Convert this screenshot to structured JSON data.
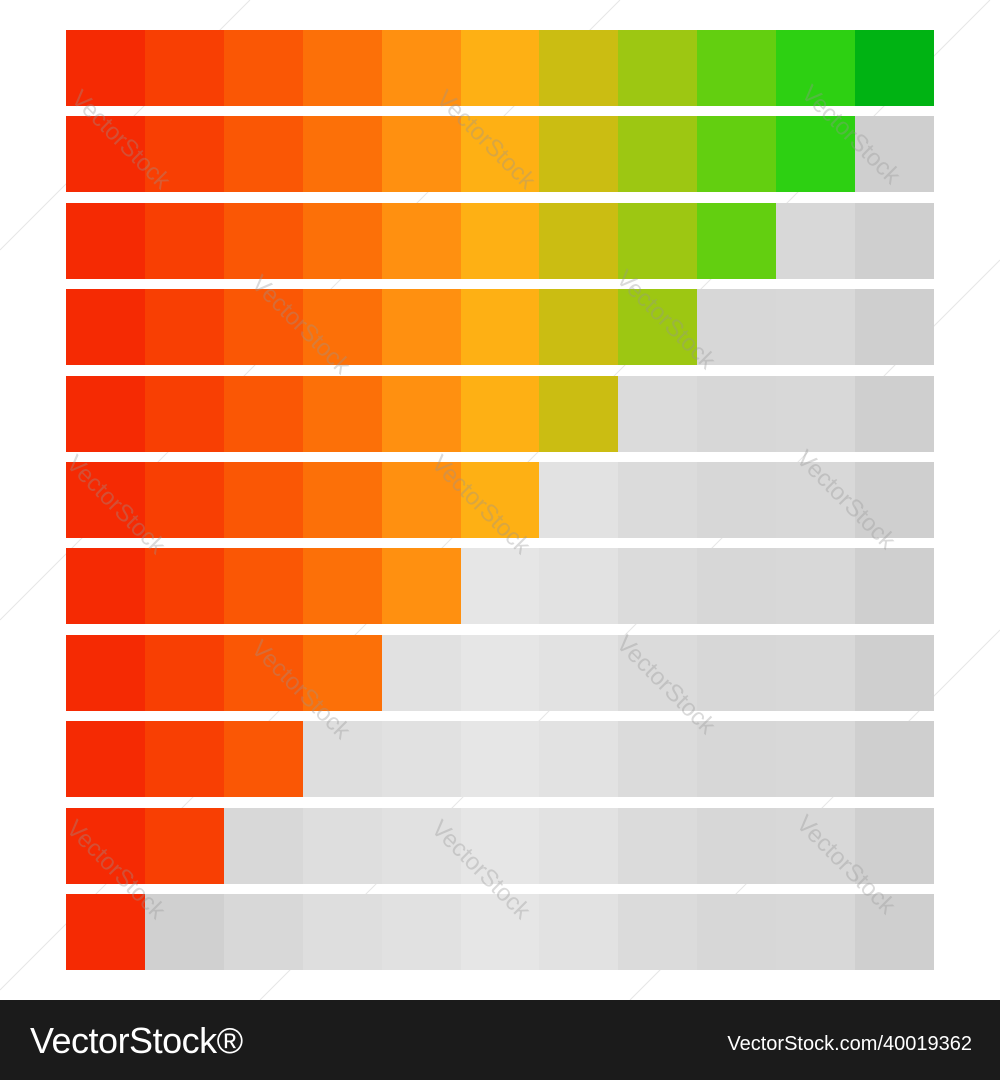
{
  "meters": [
    {
      "filled": 11
    },
    {
      "filled": 10
    },
    {
      "filled": 9
    },
    {
      "filled": 8
    },
    {
      "filled": 7
    },
    {
      "filled": 6
    },
    {
      "filled": 5
    },
    {
      "filled": 4
    },
    {
      "filled": 3
    },
    {
      "filled": 2
    },
    {
      "filled": 1
    }
  ],
  "segments_per_meter": 11,
  "colors": {
    "filled": [
      "#f52a03",
      "#f83f03",
      "#fa5705",
      "#fc7008",
      "#ff9010",
      "#feb014",
      "#cbbd12",
      "#9dc712",
      "#63cf10",
      "#2dd012",
      "#00b313"
    ],
    "empty": [
      "#d6d6d6",
      "#d0d0d0",
      "#d8d8d8",
      "#dedede",
      "#e1e1e1",
      "#e6e6e6",
      "#e2e2e2",
      "#dbdbdb",
      "#d7d7d7",
      "#d8d8d8",
      "#cfcfcf"
    ],
    "footer_bg": "#1b1b1b",
    "background": "#ffffff"
  },
  "watermark_text": "VectorStock",
  "footer": {
    "logo": "VectorStock®",
    "image_id": "VectorStock.com/40019362"
  }
}
